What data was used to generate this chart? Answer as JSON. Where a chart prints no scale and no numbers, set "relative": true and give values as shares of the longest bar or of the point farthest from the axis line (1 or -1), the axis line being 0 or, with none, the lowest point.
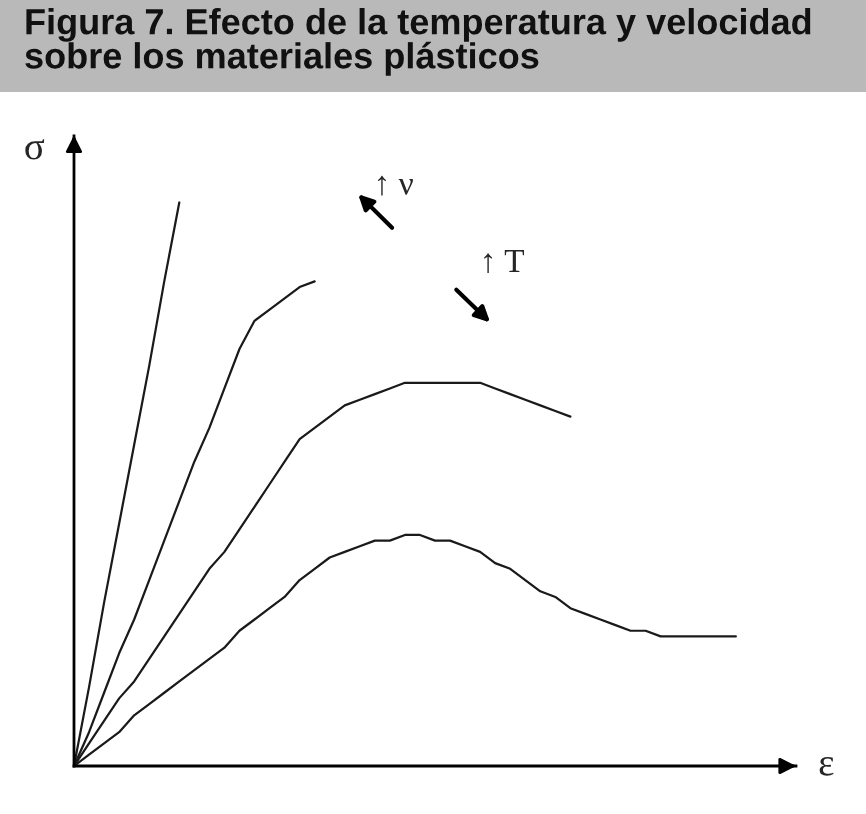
{
  "chart_data": {
    "type": "line",
    "title": "Figura 7. Efecto de la temperatura y velocidad sobre los materiales plásticos",
    "xlabel": "ε",
    "ylabel": "σ",
    "annotations": [
      "↑ ν",
      "↑ T"
    ],
    "relative": true,
    "line_style": "solid",
    "categories": [
      null,
      null,
      null,
      null,
      null,
      null,
      null,
      null,
      null,
      null,
      null,
      null,
      null,
      null,
      null,
      null,
      null,
      null,
      null,
      null,
      null,
      null,
      null,
      null,
      null,
      null,
      null,
      null,
      null,
      null,
      null,
      null,
      null,
      null,
      null,
      null,
      null,
      null,
      null,
      null,
      null,
      null,
      null,
      null,
      null,
      null,
      null,
      null,
      null
    ],
    "series": [
      {
        "color": "#1a1a1a",
        "values": [
          0,
          0.14,
          0.29,
          0.43,
          0.57,
          0.71,
          0.86,
          1,
          null,
          null,
          null,
          null,
          null,
          null,
          null,
          null,
          null,
          null,
          null,
          null,
          null,
          null,
          null,
          null,
          null,
          null,
          null,
          null,
          null,
          null,
          null,
          null,
          null,
          null,
          null,
          null,
          null,
          null,
          null,
          null,
          null,
          null,
          null,
          null,
          null,
          null,
          null,
          null,
          null
        ]
      },
      {
        "color": "#1a1a1a",
        "values": [
          0,
          0.06,
          0.13,
          0.2,
          0.26,
          0.33,
          0.4,
          0.47,
          0.54,
          0.6,
          0.67,
          0.74,
          0.79,
          0.81,
          0.83,
          0.85,
          0.86,
          null,
          null,
          null,
          null,
          null,
          null,
          null,
          null,
          null,
          null,
          null,
          null,
          null,
          null,
          null,
          null,
          null,
          null,
          null,
          null,
          null,
          null,
          null,
          null,
          null,
          null,
          null,
          null,
          null,
          null,
          null,
          null
        ]
      },
      {
        "color": "#1a1a1a",
        "values": [
          0,
          0.04,
          0.08,
          0.12,
          0.15,
          0.19,
          0.23,
          0.27,
          0.31,
          0.35,
          0.38,
          0.42,
          0.46,
          0.5,
          0.54,
          0.58,
          0.6,
          0.62,
          0.64,
          0.65,
          0.66,
          0.67,
          0.68,
          0.68,
          0.68,
          0.68,
          0.68,
          0.68,
          0.67,
          0.66,
          0.65,
          0.64,
          0.63,
          0.62,
          null,
          null,
          null,
          null,
          null,
          null,
          null,
          null,
          null,
          null,
          null,
          null,
          null,
          null,
          null
        ]
      },
      {
        "color": "#1a1a1a",
        "values": [
          0,
          0.02,
          0.04,
          0.06,
          0.09,
          0.11,
          0.13,
          0.15,
          0.17,
          0.19,
          0.21,
          0.24,
          0.26,
          0.28,
          0.3,
          0.33,
          0.35,
          0.37,
          0.38,
          0.39,
          0.4,
          0.4,
          0.41,
          0.41,
          0.4,
          0.4,
          0.39,
          0.38,
          0.36,
          0.35,
          0.33,
          0.31,
          0.3,
          0.28,
          0.27,
          0.26,
          0.25,
          0.24,
          0.24,
          0.23,
          0.23,
          0.23,
          0.23,
          0.23,
          0.23,
          null,
          null,
          null,
          null
        ]
      }
    ]
  }
}
